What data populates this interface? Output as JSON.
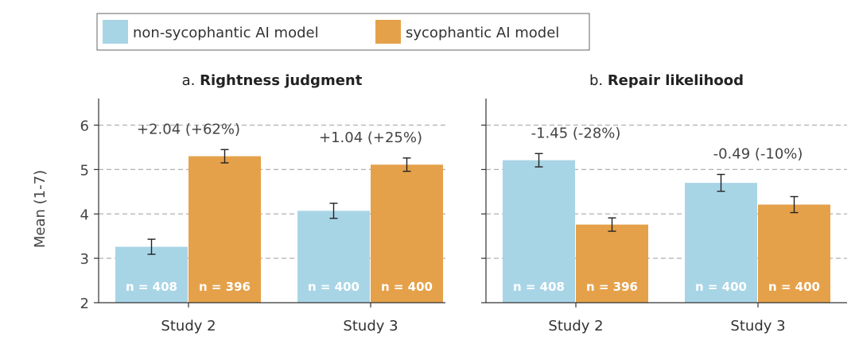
{
  "chart_data": {
    "type": "bar",
    "ylabel": "Mean (1-7)",
    "ylim": [
      2,
      6.6
    ],
    "yticks": [
      "2",
      "3",
      "4",
      "5",
      "6"
    ],
    "grid": true,
    "legend": {
      "position": "top-left",
      "entries": [
        {
          "name": "non-sycophantic AI model",
          "color": "#a8d5e6"
        },
        {
          "name": "sycophantic AI model",
          "color": "#e5a14a"
        }
      ]
    },
    "panels": [
      {
        "title_prefix": "a.",
        "title": "Rightness judgment",
        "categories": [
          "Study 2",
          "Study 3"
        ],
        "series": [
          {
            "name": "non-sycophantic AI model",
            "values": [
              3.26,
              4.07
            ],
            "err": [
              0.17,
              0.17
            ],
            "n": [
              "n = 408",
              "n = 400"
            ]
          },
          {
            "name": "sycophantic AI model",
            "values": [
              5.3,
              5.11
            ],
            "err": [
              0.15,
              0.15
            ],
            "n": [
              "n = 396",
              "n = 400"
            ]
          }
        ],
        "annotations": [
          "+2.04 (+62%)",
          "+1.04 (+25%)"
        ]
      },
      {
        "title_prefix": "b.",
        "title": "Repair likelihood",
        "categories": [
          "Study 2",
          "Study 3"
        ],
        "series": [
          {
            "name": "non-sycophantic AI model",
            "values": [
              5.21,
              4.7
            ],
            "err": [
              0.15,
              0.19
            ],
            "n": [
              "n = 408",
              "n = 400"
            ]
          },
          {
            "name": "sycophantic AI model",
            "values": [
              3.76,
              4.21
            ],
            "err": [
              0.15,
              0.18
            ],
            "n": [
              "n = 396",
              "n = 400"
            ]
          }
        ],
        "annotations": [
          "-1.45 (-28%)",
          "-0.49 (-10%)"
        ]
      }
    ],
    "colors": {
      "non_sycophantic": "#a8d5e6",
      "sycophantic": "#e5a14a",
      "grid": "#b0b0b0",
      "axis": "#333333",
      "legend_border": "#666666"
    }
  }
}
